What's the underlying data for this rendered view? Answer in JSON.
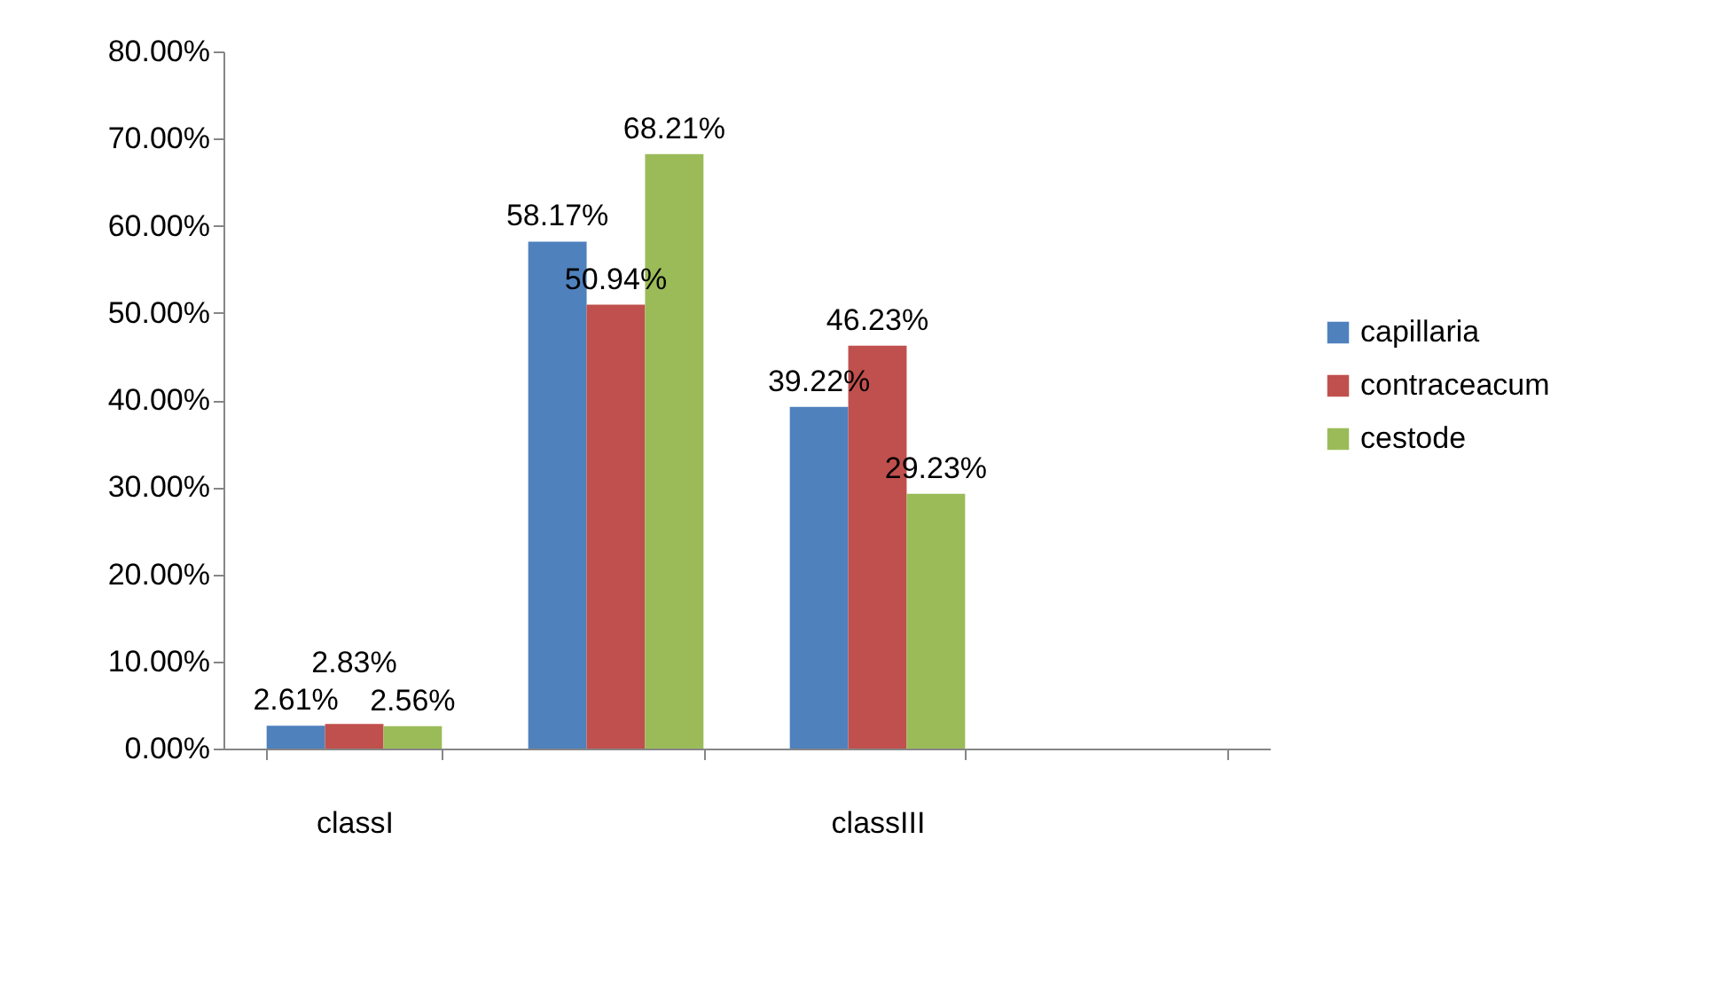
{
  "chart_data": {
    "type": "bar",
    "categories": [
      "classI",
      null,
      "classIII",
      null
    ],
    "series": [
      {
        "name": "capillaria",
        "color": "#4f81bd",
        "values": [
          2.61,
          58.17,
          39.22,
          null
        ],
        "value_labels": [
          "2.61%",
          "58.17%",
          "39.22%",
          null
        ]
      },
      {
        "name": "contraceacum",
        "color": "#c0504d",
        "values": [
          2.83,
          50.94,
          46.23,
          null
        ],
        "value_labels": [
          "2.83%",
          "50.94%",
          "46.23%",
          null
        ]
      },
      {
        "name": "cestode",
        "color": "#9bbb59",
        "values": [
          2.56,
          68.21,
          29.23,
          null
        ],
        "value_labels": [
          "2.56%",
          "68.21%",
          "29.23%",
          null
        ]
      }
    ],
    "ylim": [
      0,
      80
    ],
    "yticks": [
      {
        "value": 0,
        "label": "0.00%"
      },
      {
        "value": 10,
        "label": "10.00%"
      },
      {
        "value": 20,
        "label": "20.00%"
      },
      {
        "value": 30,
        "label": "30.00%"
      },
      {
        "value": 40,
        "label": "40.00%"
      },
      {
        "value": 50,
        "label": "50.00%"
      },
      {
        "value": 60,
        "label": "60.00%"
      },
      {
        "value": 70,
        "label": "70.00%"
      },
      {
        "value": 80,
        "label": "80.00%"
      }
    ],
    "grid": false,
    "legend": "right"
  }
}
